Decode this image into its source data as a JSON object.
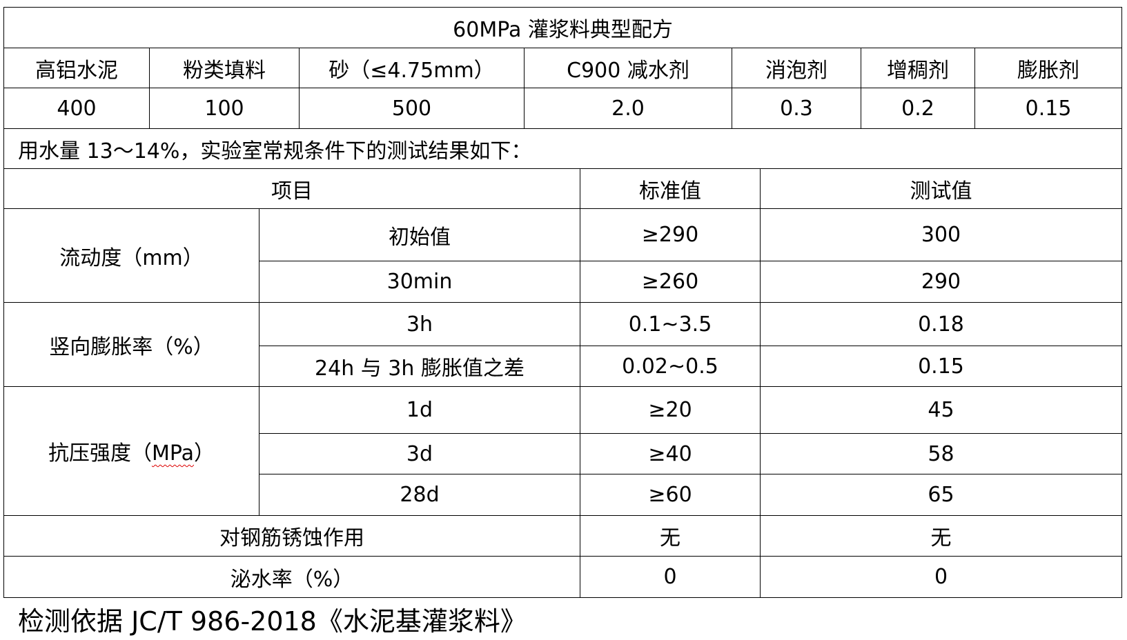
{
  "title": "60MPa 灌浆料典型配方",
  "formula": {
    "headers": [
      "高铝水泥",
      "粉类填料",
      "砂（≤4.75mm）",
      "C900 减水剂",
      "消泡剂",
      "增稠剂",
      "膨胀剂"
    ],
    "values": [
      "400",
      "100",
      "500",
      "2.0",
      "0.3",
      "0.2",
      "0.15"
    ]
  },
  "note": "用水量 13～14%，实验室常规条件下的测试结果如下：",
  "results": {
    "headers": [
      "项目",
      "标准值",
      "测试值"
    ],
    "groups": [
      {
        "name": "流动度（mm）",
        "rows": [
          {
            "item": "初始值",
            "standard": "≥290",
            "test": "300"
          },
          {
            "item": "30min",
            "standard": "≥260",
            "test": "290"
          }
        ]
      },
      {
        "name": "竖向膨胀率（%）",
        "rows": [
          {
            "item": "3h",
            "standard": "0.1~3.5",
            "test": "0.18"
          },
          {
            "item": "24h 与 3h 膨胀值之差",
            "standard": "0.02~0.5",
            "test": "0.15"
          }
        ]
      },
      {
        "name_prefix": "抗压强度（",
        "name_unit": "MPa",
        "name_suffix": "）",
        "rows": [
          {
            "item": "1d",
            "standard": "≥20",
            "test": "45"
          },
          {
            "item": "3d",
            "standard": "≥40",
            "test": "58"
          },
          {
            "item": "28d",
            "standard": "≥60",
            "test": "65"
          }
        ]
      }
    ],
    "single_rows": [
      {
        "item": "对钢筋锈蚀作用",
        "standard": "无",
        "test": "无"
      },
      {
        "item": "泌水率（%）",
        "standard": "0",
        "test": "0"
      }
    ]
  },
  "footer": "检测依据 JC/T 986-2018《水泥基灌浆料》"
}
